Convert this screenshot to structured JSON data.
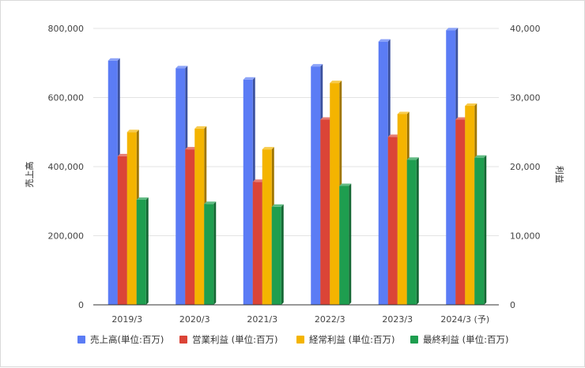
{
  "chart_data": {
    "type": "bar",
    "categories": [
      "2019/3",
      "2020/3",
      "2021/3",
      "2022/3",
      "2023/3",
      "2024/3 (予)"
    ],
    "series": [
      {
        "name": "売上高(単位:百万)",
        "axis": "left",
        "color": "#5b7cf5",
        "values": [
          707000,
          685000,
          652000,
          690000,
          762000,
          795000
        ]
      },
      {
        "name": "営業利益 (単位:百万)",
        "axis": "right",
        "color": "#db4437",
        "values": [
          21500,
          22500,
          17800,
          26800,
          24300,
          26800
        ]
      },
      {
        "name": "経常利益 (単位:百万)",
        "axis": "right",
        "color": "#f4b400",
        "values": [
          25000,
          25500,
          22500,
          32100,
          27600,
          28800
        ]
      },
      {
        "name": "最終利益 (単位:百万)",
        "axis": "right",
        "color": "#1e9e4f",
        "values": [
          15200,
          14600,
          14200,
          17200,
          21000,
          21300
        ]
      }
    ],
    "ylabel": "売上高",
    "y2label": "利益",
    "ylim": [
      0,
      800000
    ],
    "y2lim": [
      0,
      40000
    ],
    "yticks": [
      "0",
      "200,000",
      "400,000",
      "600,000",
      "800,000"
    ],
    "y2ticks": [
      "0",
      "10,000",
      "20,000",
      "30,000",
      "40,000"
    ],
    "grid": true,
    "legend_position": "bottom"
  }
}
